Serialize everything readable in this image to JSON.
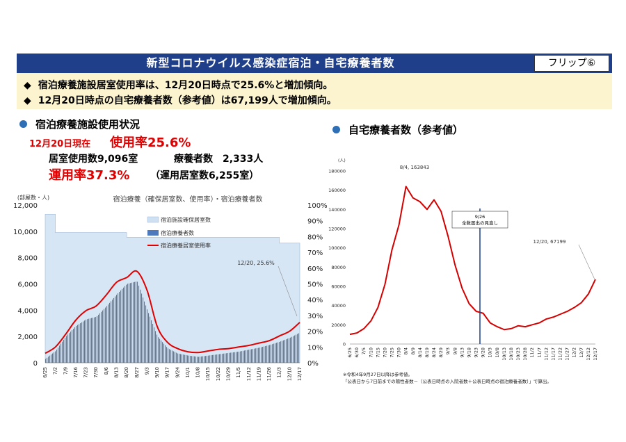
{
  "header": {
    "title": "新型コロナウイルス感染症宿泊・自宅療養者数",
    "flip_label": "フリップ⑥"
  },
  "summary": {
    "bullet": "◆",
    "line1": "宿泊療養施設居室使用率は、12月20日時点で25.6%と増加傾向。",
    "line2": "12月20日時点の自宅療養者数（参考値）は67,199人で増加傾向。"
  },
  "left_section": {
    "heading": "宿泊療養施設使用状況",
    "date_label": "12月20日現在",
    "usage_rate": "使用率25.6%",
    "rooms_line": "居室使用数9,096室",
    "patients_line": "療養者数　2,333人",
    "operation_rate": "運用率37.3%",
    "operation_rooms": "（運用居室数6,255室）"
  },
  "right_section": {
    "heading": "自宅療養者数（参考値）"
  },
  "notes": {
    "note1": "※令和4年9月27日以降は参考値。",
    "note2": "「公表日から7日前までの陽性者数－（公表日時点の入院者数＋公表日時点の宿泊療養者数）」で算出。"
  },
  "chart_data": [
    {
      "type": "bar",
      "title": "宿泊療養（確保居室数、使用率）・宿泊療養者数",
      "ylabel": "(部屋数・人)",
      "ylim": [
        0,
        12000
      ],
      "y2lim": [
        0,
        1.0
      ],
      "yticks": [
        "0",
        "2,000",
        "4,000",
        "6,000",
        "8,000",
        "10,000",
        "12,000"
      ],
      "y2ticks": [
        "0%",
        "10%",
        "20%",
        "30%",
        "40%",
        "50%",
        "60%",
        "70%",
        "80%",
        "90%",
        "100%"
      ],
      "categories": [
        "6/25",
        "7/2",
        "7/9",
        "7/16",
        "7/23",
        "7/30",
        "8/6",
        "8/13",
        "8/20",
        "8/27",
        "9/3",
        "9/10",
        "9/17",
        "9/24",
        "10/1",
        "10/8",
        "10/15",
        "10/22",
        "10/29",
        "11/5",
        "11/12",
        "11/19",
        "11/26",
        "12/3",
        "12/10",
        "12/17"
      ],
      "legend": [
        "宿泊施設確保居室数",
        "宿泊療養者数",
        "宿泊療養居室使用率"
      ],
      "legend_position": "top-right",
      "annotation": "12/20, 25.6%",
      "series": [
        {
          "name": "宿泊施設確保居室数",
          "values": [
            11300,
            9900,
            9900,
            9900,
            9900,
            9900,
            9900,
            9900,
            9550,
            9550,
            9550,
            9550,
            9550,
            9550,
            9550,
            9550,
            9550,
            9550,
            9550,
            9550,
            9550,
            9550,
            9550,
            9100,
            9100,
            9096
          ]
        },
        {
          "name": "宿泊療養者数",
          "values": [
            300,
            900,
            2000,
            2800,
            3300,
            3500,
            4300,
            5200,
            6000,
            6200,
            4000,
            2000,
            1100,
            700,
            550,
            450,
            550,
            650,
            750,
            850,
            1000,
            1150,
            1350,
            1600,
            1900,
            2300
          ]
        },
        {
          "name": "宿泊療養居室使用率",
          "values": [
            0.06,
            0.1,
            0.18,
            0.27,
            0.33,
            0.36,
            0.43,
            0.51,
            0.54,
            0.58,
            0.46,
            0.23,
            0.13,
            0.09,
            0.07,
            0.065,
            0.075,
            0.085,
            0.09,
            0.1,
            0.11,
            0.125,
            0.14,
            0.17,
            0.2,
            0.256
          ]
        }
      ]
    },
    {
      "type": "line",
      "ylabel": "(人)",
      "ylim": [
        0,
        180000
      ],
      "yticks": [
        "0",
        "20000",
        "40000",
        "60000",
        "80000",
        "100000",
        "120000",
        "140000",
        "160000",
        "180000"
      ],
      "categories": [
        "6/25",
        "6/30",
        "7/5",
        "7/10",
        "7/15",
        "7/20",
        "7/25",
        "7/30",
        "8/4",
        "8/9",
        "8/14",
        "8/19",
        "8/24",
        "8/29",
        "9/3",
        "9/8",
        "9/13",
        "9/18",
        "9/23",
        "9/28",
        "10/3",
        "10/8",
        "10/13",
        "10/18",
        "10/23",
        "10/28",
        "11/2",
        "11/7",
        "11/12",
        "11/17",
        "11/22",
        "11/27",
        "12/2",
        "12/7",
        "12/12",
        "12/17"
      ],
      "annotations": [
        "8/4, 163843",
        "9/26\n全数届出の見直し",
        "12/20, 67199"
      ],
      "series": [
        {
          "name": "",
          "values": [
            10000,
            11500,
            16000,
            24000,
            38000,
            62000,
            98000,
            124000,
            163843,
            152000,
            148000,
            140000,
            150000,
            138000,
            112000,
            82000,
            58000,
            42000,
            34000,
            32000,
            22000,
            18000,
            15000,
            16000,
            19000,
            18000,
            20000,
            22000,
            26000,
            28000,
            31000,
            34000,
            38000,
            43000,
            52000,
            67199
          ]
        }
      ]
    }
  ]
}
